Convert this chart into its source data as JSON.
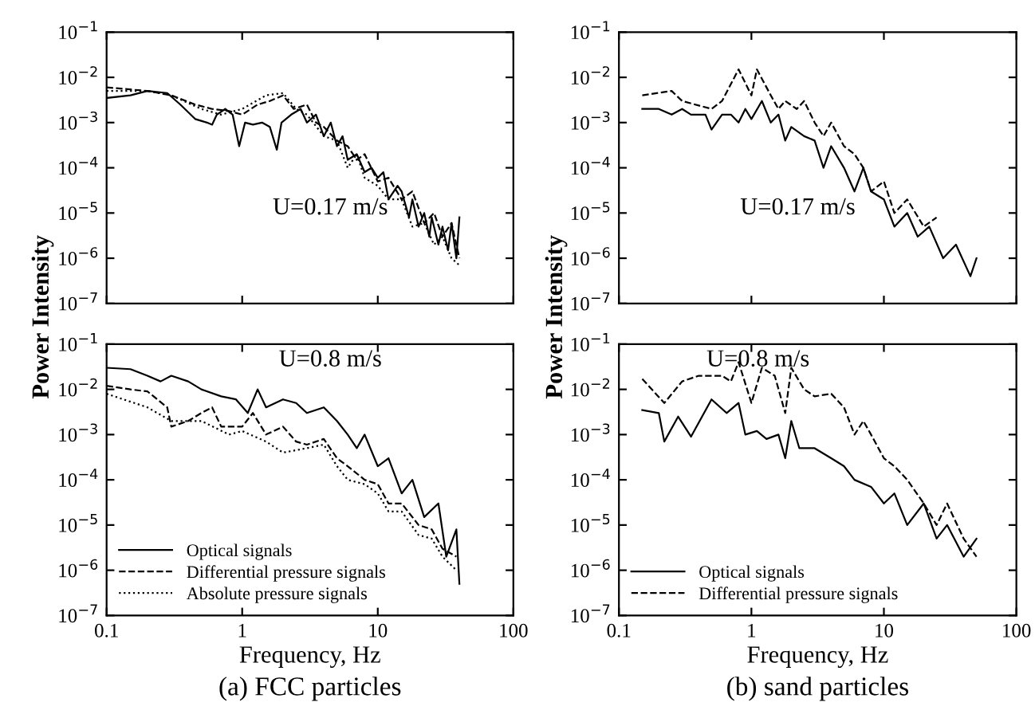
{
  "chart_data": [
    {
      "type": "line",
      "ylabel": "Power Intensity",
      "annotations": [
        "U=0.17 m/s"
      ],
      "log": "xy",
      "xlim": [
        0.1,
        100
      ],
      "ylim": [
        1e-07,
        0.1
      ],
      "xticks": [
        0.1,
        1,
        10,
        100
      ],
      "yticks": [
        {
          "value": 1e-07,
          "label": "10$^{−7}$"
        },
        {
          "value": 1e-06,
          "label": "10$^{−6}$"
        },
        {
          "value": 1e-05,
          "label": "10$^{−5}$"
        },
        {
          "value": 0.0001,
          "label": "10$^{−4}$"
        },
        {
          "value": 0.001,
          "label": "10$^{−3}$"
        },
        {
          "value": 0.01,
          "label": "10$^{−2}$"
        },
        {
          "value": 0.1,
          "label": "10$^{−1}$"
        }
      ],
      "tick_labels": "y",
      "grid": false,
      "series": [
        {
          "color": "#000000",
          "line_style": "solid",
          "x": [
            0.1,
            0.15,
            0.2,
            0.28,
            0.35,
            0.45,
            0.55,
            0.6,
            0.65,
            0.75,
            0.85,
            0.95,
            1.05,
            1.2,
            1.4,
            1.6,
            1.8,
            1.95,
            2.3,
            2.7,
            3,
            3.5,
            4,
            4.5,
            5,
            5.5,
            6,
            7,
            8,
            9,
            10,
            11,
            12,
            14,
            15,
            17,
            18,
            20,
            22,
            24,
            25,
            28,
            30,
            33,
            35,
            38,
            40
          ],
          "values": [
            0.0035,
            0.004,
            0.005,
            0.0045,
            0.0025,
            0.0012,
            0.001,
            0.0009,
            0.0015,
            0.002,
            0.0015,
            0.0003,
            0.001,
            0.0009,
            0.001,
            0.0008,
            0.00025,
            0.001,
            0.0015,
            0.002,
            0.001,
            0.0015,
            0.0005,
            0.001,
            0.0003,
            0.0005,
            0.00015,
            0.0002,
            8e-05,
            0.0001,
            6e-05,
            8e-05,
            2e-05,
            4e-05,
            3e-05,
            8e-06,
            2e-05,
            5e-06,
            1e-05,
            3e-06,
            8e-06,
            2e-06,
            5e-06,
            1.5e-06,
            6e-06,
            1e-06,
            8e-06
          ]
        },
        {
          "color": "#000000",
          "line_style": "dashed",
          "x": [
            0.1,
            0.2,
            0.3,
            0.45,
            0.6,
            0.8,
            1,
            1.3,
            1.6,
            2,
            2.4,
            3,
            3.5,
            4,
            5,
            6,
            7,
            8,
            10,
            12,
            15,
            18,
            22,
            26,
            30,
            35,
            40
          ],
          "values": [
            0.006,
            0.005,
            0.004,
            0.0025,
            0.002,
            0.0018,
            0.0015,
            0.0025,
            0.003,
            0.004,
            0.002,
            0.0025,
            0.001,
            0.0008,
            0.0004,
            0.0003,
            0.00015,
            0.0002,
            5e-05,
            6e-05,
            2e-05,
            3e-05,
            6e-06,
            1e-05,
            3e-06,
            6e-06,
            1e-06
          ]
        },
        {
          "color": "#000000",
          "line_style": "dotted",
          "x": [
            0.1,
            0.2,
            0.3,
            0.5,
            0.7,
            1,
            1.5,
            2,
            2.5,
            3,
            4,
            5,
            6,
            7,
            8,
            10,
            12,
            15,
            18,
            22,
            26,
            30,
            35,
            40
          ],
          "values": [
            0.005,
            0.005,
            0.004,
            0.002,
            0.0015,
            0.002,
            0.004,
            0.0045,
            0.002,
            0.0015,
            0.0005,
            0.0004,
            0.0001,
            0.0002,
            6e-05,
            4e-05,
            2e-05,
            2e-05,
            5e-06,
            6e-06,
            2e-06,
            3e-06,
            1e-06,
            7e-07
          ]
        }
      ]
    },
    {
      "type": "line",
      "ylabel": "Power Intensity",
      "annotations": [
        "U=0.17 m/s"
      ],
      "log": "xy",
      "xlim": [
        0.1,
        100
      ],
      "ylim": [
        1e-07,
        0.1
      ],
      "xticks": [
        0.1,
        1,
        10,
        100
      ],
      "yticks": [
        {
          "value": 1e-07,
          "label": "10$^{−7}$"
        },
        {
          "value": 1e-06,
          "label": "10$^{−6}$"
        },
        {
          "value": 1e-05,
          "label": "10$^{−5}$"
        },
        {
          "value": 0.0001,
          "label": "10$^{−4}$"
        },
        {
          "value": 0.001,
          "label": "10$^{−3}$"
        },
        {
          "value": 0.01,
          "label": "10$^{−2}$"
        },
        {
          "value": 0.1,
          "label": "10$^{−1}$"
        }
      ],
      "tick_labels": "y",
      "grid": false,
      "series": [
        {
          "color": "#000000",
          "line_style": "solid",
          "x": [
            0.15,
            0.2,
            0.25,
            0.3,
            0.35,
            0.45,
            0.5,
            0.6,
            0.7,
            0.8,
            0.9,
            1,
            1.2,
            1.4,
            1.6,
            1.8,
            2,
            2.5,
            3,
            3.5,
            4,
            5,
            6,
            7,
            8,
            10,
            12,
            15,
            18,
            22,
            28,
            35,
            45,
            50
          ],
          "values": [
            0.002,
            0.002,
            0.0015,
            0.002,
            0.0015,
            0.0015,
            0.0007,
            0.0015,
            0.0015,
            0.001,
            0.002,
            0.0012,
            0.003,
            0.001,
            0.0015,
            0.0004,
            0.0008,
            0.0005,
            0.0004,
            0.0001,
            0.0003,
            0.0001,
            3e-05,
            0.0001,
            3e-05,
            2e-05,
            5e-06,
            1e-05,
            3e-06,
            5e-06,
            1e-06,
            2e-06,
            4e-07,
            1e-06
          ]
        },
        {
          "color": "#000000",
          "line_style": "dashed",
          "x": [
            0.15,
            0.25,
            0.3,
            0.5,
            0.6,
            0.8,
            1,
            1.1,
            1.4,
            1.6,
            1.8,
            2.2,
            2.5,
            3,
            3.5,
            4,
            5,
            6,
            7,
            8,
            10,
            12,
            15,
            20,
            25
          ],
          "values": [
            0.004,
            0.005,
            0.003,
            0.002,
            0.003,
            0.015,
            0.004,
            0.015,
            0.004,
            0.002,
            0.003,
            0.002,
            0.003,
            0.001,
            0.0005,
            0.001,
            0.0003,
            0.0002,
            0.0001,
            3e-05,
            5e-05,
            1e-05,
            2e-05,
            5e-06,
            8e-06
          ]
        }
      ]
    },
    {
      "type": "line",
      "xlabel": "Frequency, Hz",
      "annotations": [
        "U=0.8 m/s",
        "(a) FCC particles"
      ],
      "log": "xy",
      "xlim": [
        0.1,
        100
      ],
      "ylim": [
        1e-07,
        0.1
      ],
      "xticks": [
        0.1,
        1,
        10,
        100
      ],
      "yticks": [
        {
          "value": 1e-07,
          "label": "10$^{−7}$"
        },
        {
          "value": 1e-06,
          "label": "10$^{−6}$"
        },
        {
          "value": 1e-05,
          "label": "10$^{−5}$"
        },
        {
          "value": 0.0001,
          "label": "10$^{−4}$"
        },
        {
          "value": 0.001,
          "label": "10$^{−3}$"
        },
        {
          "value": 0.01,
          "label": "10$^{−2}$"
        },
        {
          "value": 0.1,
          "label": "10$^{−1}$"
        }
      ],
      "grid": false,
      "legend": "bottom left",
      "series": [
        {
          "name": "Optical signals",
          "color": "#000000",
          "line_style": "solid",
          "x": [
            0.1,
            0.15,
            0.2,
            0.25,
            0.3,
            0.4,
            0.5,
            0.7,
            0.9,
            1.1,
            1.3,
            1.5,
            2,
            2.5,
            3,
            4,
            5,
            6,
            7,
            8,
            10,
            12,
            15,
            18,
            22,
            28,
            32,
            38,
            40
          ],
          "values": [
            0.03,
            0.028,
            0.02,
            0.015,
            0.02,
            0.015,
            0.01,
            0.007,
            0.006,
            0.003,
            0.01,
            0.004,
            0.006,
            0.005,
            0.003,
            0.004,
            0.002,
            0.001,
            0.0005,
            0.001,
            0.0002,
            0.0003,
            5e-05,
            0.0001,
            1.5e-05,
            3e-05,
            2e-06,
            8e-06,
            5e-07
          ]
        },
        {
          "name": "Differential pressure signals",
          "color": "#000000",
          "line_style": "dashed",
          "x": [
            0.1,
            0.15,
            0.2,
            0.28,
            0.3,
            0.4,
            0.5,
            0.6,
            0.7,
            1,
            1.2,
            1.5,
            2,
            2.5,
            3,
            4,
            5,
            6,
            8,
            10,
            12,
            15,
            20,
            25,
            30,
            38
          ],
          "values": [
            0.012,
            0.01,
            0.009,
            0.004,
            0.0015,
            0.002,
            0.003,
            0.004,
            0.0015,
            0.0015,
            0.003,
            0.001,
            0.0015,
            0.0007,
            0.0006,
            0.0008,
            0.0003,
            0.0002,
            0.0001,
            8e-05,
            3e-05,
            3e-05,
            1e-05,
            8e-06,
            3e-06,
            2e-06
          ]
        },
        {
          "name": "Absolute pressure signals",
          "color": "#000000",
          "line_style": "dotted",
          "x": [
            0.1,
            0.2,
            0.3,
            0.5,
            0.8,
            1,
            1.5,
            2,
            3,
            4,
            5,
            6,
            8,
            10,
            12,
            15,
            20,
            25,
            30,
            38
          ],
          "values": [
            0.008,
            0.004,
            0.002,
            0.002,
            0.001,
            0.0012,
            0.0007,
            0.0004,
            0.0005,
            0.0006,
            0.0002,
            0.0001,
            8e-05,
            5e-05,
            2e-05,
            2e-05,
            6e-06,
            5e-06,
            2e-06,
            1e-06
          ]
        }
      ]
    },
    {
      "type": "line",
      "xlabel": "Frequency, Hz",
      "annotations": [
        "U=0.8 m/s",
        "(b) sand particles"
      ],
      "log": "xy",
      "xlim": [
        0.1,
        100
      ],
      "ylim": [
        1e-07,
        0.1
      ],
      "xticks": [
        0.1,
        1,
        10,
        100
      ],
      "yticks": [
        {
          "value": 1e-07,
          "label": "10$^{−7}$"
        },
        {
          "value": 1e-06,
          "label": "10$^{−6}$"
        },
        {
          "value": 1e-05,
          "label": "10$^{−5}$"
        },
        {
          "value": 0.0001,
          "label": "10$^{−4}$"
        },
        {
          "value": 0.001,
          "label": "10$^{−3}$"
        },
        {
          "value": 0.01,
          "label": "10$^{−2}$"
        },
        {
          "value": 0.1,
          "label": "10$^{−1}$"
        }
      ],
      "grid": false,
      "legend": "bottom left",
      "series": [
        {
          "name": "Optical signals",
          "color": "#000000",
          "line_style": "solid",
          "x": [
            0.15,
            0.2,
            0.22,
            0.28,
            0.35,
            0.5,
            0.65,
            0.8,
            0.9,
            1.1,
            1.3,
            1.6,
            1.8,
            2,
            2.3,
            3,
            4,
            5,
            6,
            8,
            10,
            12,
            15,
            20,
            25,
            30,
            40,
            50
          ],
          "values": [
            0.0035,
            0.003,
            0.0007,
            0.0025,
            0.0009,
            0.006,
            0.003,
            0.005,
            0.001,
            0.0012,
            0.0008,
            0.001,
            0.0003,
            0.002,
            0.0005,
            0.0005,
            0.0003,
            0.0002,
            0.0001,
            7e-05,
            3e-05,
            5e-05,
            1e-05,
            3e-05,
            5e-06,
            1e-05,
            2e-06,
            5e-06
          ]
        },
        {
          "name": "Differential pressure signals",
          "color": "#000000",
          "line_style": "dashed",
          "x": [
            0.15,
            0.22,
            0.3,
            0.4,
            0.6,
            0.7,
            0.8,
            1,
            1.2,
            1.5,
            1.8,
            2,
            2.5,
            3,
            4,
            5,
            6,
            7,
            8,
            10,
            12,
            15,
            20,
            25,
            30,
            40,
            50
          ],
          "values": [
            0.017,
            0.005,
            0.015,
            0.02,
            0.02,
            0.015,
            0.04,
            0.005,
            0.03,
            0.02,
            0.003,
            0.03,
            0.01,
            0.007,
            0.008,
            0.004,
            0.001,
            0.002,
            0.001,
            0.0003,
            0.0002,
            0.0001,
            3e-05,
            1e-05,
            3e-05,
            5e-06,
            2e-06
          ]
        }
      ]
    }
  ]
}
